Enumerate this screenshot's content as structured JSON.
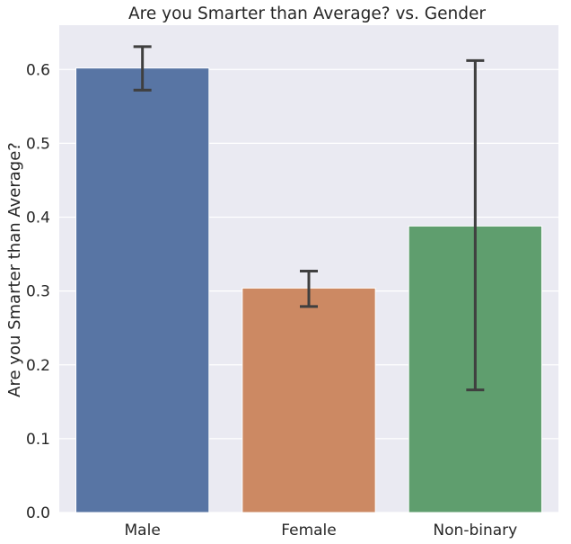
{
  "chart_data": {
    "type": "bar",
    "title": "Are you Smarter than Average? vs. Gender",
    "xlabel": "",
    "ylabel": "Are you Smarter than Average?",
    "categories": [
      "Male",
      "Female",
      "Non-binary"
    ],
    "values": [
      0.602,
      0.304,
      0.388
    ],
    "error_low": [
      0.572,
      0.279,
      0.166
    ],
    "error_high": [
      0.631,
      0.327,
      0.612
    ],
    "colors": [
      "#5875a4",
      "#cc8963",
      "#5f9e6e"
    ],
    "ylim": [
      0,
      0.66
    ],
    "yticks": [
      "0.0",
      "0.1",
      "0.2",
      "0.3",
      "0.4",
      "0.5",
      "0.6"
    ],
    "grid": true,
    "background": "#eaeaf2",
    "error_color": "#3f3f3f"
  }
}
